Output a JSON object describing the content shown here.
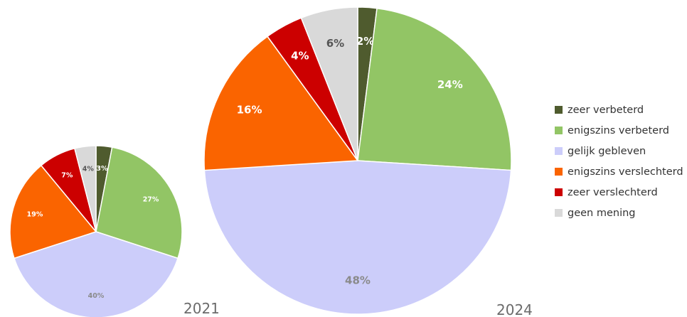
{
  "chart_data": [
    {
      "type": "pie",
      "title": "2021",
      "categories": [
        "zeer verbeterd",
        "enigszins verbeterd",
        "gelijk gebleven",
        "enigszins verslechterd",
        "zeer verslechterd",
        "geen mening"
      ],
      "values": [
        3,
        27,
        40,
        19,
        7,
        4
      ],
      "labels": [
        "3%",
        "27%",
        "40%",
        "19%",
        "7%",
        "4%"
      ],
      "label_colors": [
        "#ffffff",
        "#ffffff",
        "#8a8a8a",
        "#ffffff",
        "#ffffff",
        "#555555"
      ]
    },
    {
      "type": "pie",
      "title": "2024",
      "categories": [
        "zeer verbeterd",
        "enigszins verbeterd",
        "gelijk gebleven",
        "enigszins verslechterd",
        "zeer verslechterd",
        "geen mening"
      ],
      "values": [
        2,
        24,
        48,
        16,
        4,
        6
      ],
      "labels": [
        "2%",
        "24%",
        "48%",
        "16%",
        "4%",
        "6%"
      ],
      "label_colors": [
        "#ffffff",
        "#ffffff",
        "#8a8a8a",
        "#ffffff",
        "#ffffff",
        "#555555"
      ]
    }
  ],
  "legend": {
    "items": [
      {
        "label": "zeer verbeterd",
        "color": "#4f5b2e"
      },
      {
        "label": "enigszins verbeterd",
        "color": "#92c565"
      },
      {
        "label": "gelijk gebleven",
        "color": "#cccdfa"
      },
      {
        "label": "enigszins verslechterd",
        "color": "#fa6400"
      },
      {
        "label": "zeer verslechterd",
        "color": "#cc0000"
      },
      {
        "label": "geen mening",
        "color": "#d9d9d9"
      }
    ]
  }
}
